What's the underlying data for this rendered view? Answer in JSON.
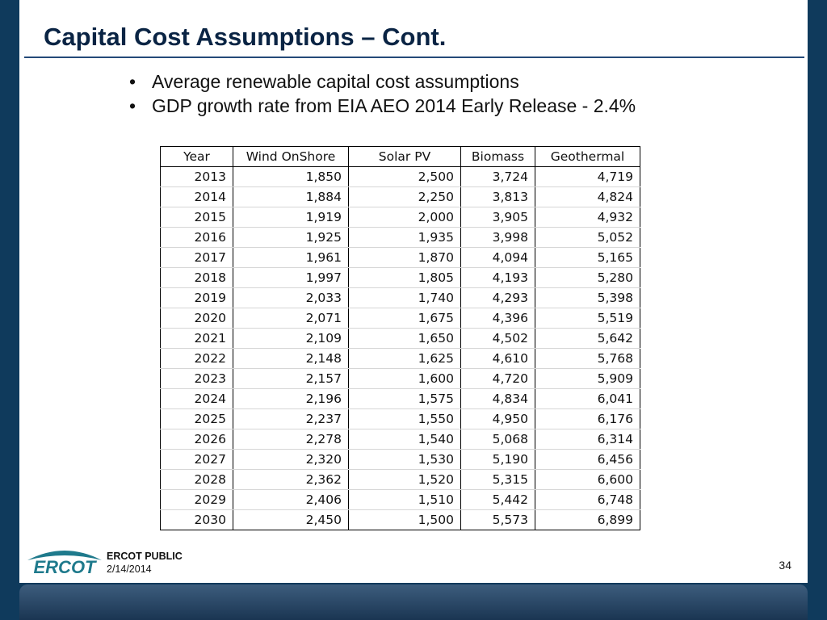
{
  "slide": {
    "title": "Capital Cost Assumptions – Cont.",
    "bullets": [
      "Average renewable capital cost assumptions",
      "GDP growth rate from EIA AEO 2014 Early Release - 2.4%"
    ],
    "bullet_glyph": "•"
  },
  "table": {
    "headers": [
      "Year",
      "Wind OnShore",
      "Solar PV",
      "Biomass",
      "Geothermal"
    ],
    "rows": [
      [
        "2013",
        "1,850",
        "2,500",
        "3,724",
        "4,719"
      ],
      [
        "2014",
        "1,884",
        "2,250",
        "3,813",
        "4,824"
      ],
      [
        "2015",
        "1,919",
        "2,000",
        "3,905",
        "4,932"
      ],
      [
        "2016",
        "1,925",
        "1,935",
        "3,998",
        "5,052"
      ],
      [
        "2017",
        "1,961",
        "1,870",
        "4,094",
        "5,165"
      ],
      [
        "2018",
        "1,997",
        "1,805",
        "4,193",
        "5,280"
      ],
      [
        "2019",
        "2,033",
        "1,740",
        "4,293",
        "5,398"
      ],
      [
        "2020",
        "2,071",
        "1,675",
        "4,396",
        "5,519"
      ],
      [
        "2021",
        "2,109",
        "1,650",
        "4,502",
        "5,642"
      ],
      [
        "2022",
        "2,148",
        "1,625",
        "4,610",
        "5,768"
      ],
      [
        "2023",
        "2,157",
        "1,600",
        "4,720",
        "5,909"
      ],
      [
        "2024",
        "2,196",
        "1,575",
        "4,834",
        "6,041"
      ],
      [
        "2025",
        "2,237",
        "1,550",
        "4,950",
        "6,176"
      ],
      [
        "2026",
        "2,278",
        "1,540",
        "5,068",
        "6,314"
      ],
      [
        "2027",
        "2,320",
        "1,530",
        "5,190",
        "6,456"
      ],
      [
        "2028",
        "2,362",
        "1,520",
        "5,315",
        "6,600"
      ],
      [
        "2029",
        "2,406",
        "1,510",
        "5,442",
        "6,748"
      ],
      [
        "2030",
        "2,450",
        "1,500",
        "5,573",
        "6,899"
      ]
    ]
  },
  "footer": {
    "logo_text": "ERCOT",
    "classification": "ERCOT PUBLIC",
    "date": "2/14/2014",
    "page_number": "34"
  },
  "colors": {
    "frame": "#0f3a5c",
    "title": "#0a2444",
    "logo": "#1f7a8c"
  }
}
